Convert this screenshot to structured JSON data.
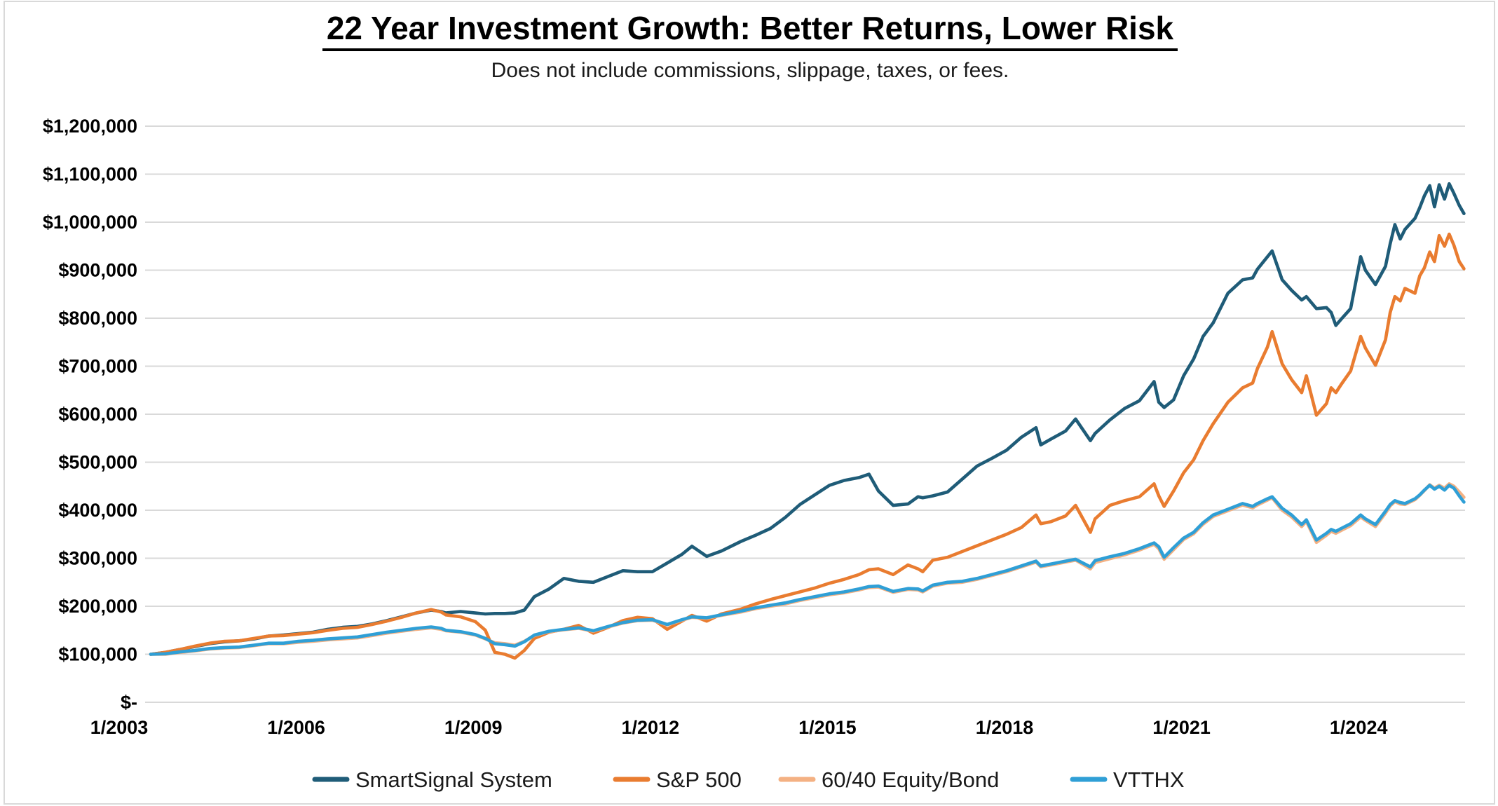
{
  "title": "22 Year Investment Growth: Better Returns, Lower Risk",
  "subtitle": "Does not include commissions, slippage, taxes, or fees.",
  "y_axis": {
    "ticks": [
      {
        "label": "$-",
        "value_thousands": 0
      },
      {
        "label": "$100,000",
        "value_thousands": 100
      },
      {
        "label": "$200,000",
        "value_thousands": 200
      },
      {
        "label": "$300,000",
        "value_thousands": 300
      },
      {
        "label": "$400,000",
        "value_thousands": 400
      },
      {
        "label": "$500,000",
        "value_thousands": 500
      },
      {
        "label": "$600,000",
        "value_thousands": 600
      },
      {
        "label": "$700,000",
        "value_thousands": 700
      },
      {
        "label": "$800,000",
        "value_thousands": 800
      },
      {
        "label": "$900,000",
        "value_thousands": 900
      },
      {
        "label": "$1,000,000",
        "value_thousands": 1000
      },
      {
        "label": "$1,100,000",
        "value_thousands": 1100
      },
      {
        "label": "$1,200,000",
        "value_thousands": 1200
      }
    ]
  },
  "x_axis": {
    "ticks": [
      {
        "label": "1/2003",
        "year": 2003
      },
      {
        "label": "1/2006",
        "year": 2006
      },
      {
        "label": "1/2009",
        "year": 2009
      },
      {
        "label": "1/2012",
        "year": 2012
      },
      {
        "label": "1/2015",
        "year": 2015
      },
      {
        "label": "1/2018",
        "year": 2018
      },
      {
        "label": "1/2021",
        "year": 2021
      },
      {
        "label": "1/2024",
        "year": 2024
      }
    ]
  },
  "colors": {
    "grid": "#d9d9d9",
    "smartsignal": "#1f5c78",
    "sp500": "#e97c30",
    "sixty_forty": "#f4b183",
    "vtthx": "#2f9fd6"
  },
  "chart_data": {
    "type": "line",
    "title": "22 Year Investment Growth: Better Returns, Lower Risk",
    "subtitle": "Does not include commissions, slippage, taxes, or fees.",
    "xlabel": "",
    "ylabel": "",
    "ylim_usd": [
      0,
      1200000
    ],
    "xlim_years": [
      2003,
      2025.25
    ],
    "grid": true,
    "legend_position": "bottom",
    "x_years": [
      2003,
      2003.25,
      2003.5,
      2003.75,
      2004,
      2004.25,
      2004.5,
      2004.75,
      2005,
      2005.25,
      2005.5,
      2005.75,
      2006,
      2006.25,
      2006.5,
      2006.75,
      2007,
      2007.25,
      2007.5,
      2007.75,
      2007.92,
      2008,
      2008.25,
      2008.5,
      2008.67,
      2008.83,
      2009,
      2009.17,
      2009.33,
      2009.5,
      2009.75,
      2010,
      2010.25,
      2010.5,
      2010.75,
      2011,
      2011.25,
      2011.5,
      2011.75,
      2012,
      2012.17,
      2012.42,
      2012.67,
      2013,
      2013.25,
      2013.5,
      2013.75,
      2014,
      2014.25,
      2014.5,
      2014.75,
      2015,
      2015.17,
      2015.33,
      2015.58,
      2015.83,
      2016,
      2016.08,
      2016.25,
      2016.5,
      2016.75,
      2017,
      2017.25,
      2017.5,
      2017.75,
      2018,
      2018.08,
      2018.25,
      2018.5,
      2018.67,
      2018.92,
      2019,
      2019.25,
      2019.5,
      2019.75,
      2020,
      2020.08,
      2020.17,
      2020.33,
      2020.5,
      2020.67,
      2020.83,
      2021,
      2021.25,
      2021.5,
      2021.67,
      2021.75,
      2021.92,
      2022,
      2022.17,
      2022.33,
      2022.5,
      2022.58,
      2022.75,
      2022.92,
      2023,
      2023.08,
      2023.17,
      2023.33,
      2023.5,
      2023.58,
      2023.75,
      2023.92,
      2024,
      2024.08,
      2024.17,
      2024.25,
      2024.42,
      2024.5,
      2024.58,
      2024.67,
      2024.75,
      2024.83,
      2024.92,
      2025,
      2025.08,
      2025.17,
      2025.25
    ],
    "series": [
      {
        "name": "SmartSignal System",
        "color": "#1f5c78",
        "values_usd_thousands": [
          100,
          104,
          110,
          116,
          122,
          126,
          128,
          132,
          138,
          140,
          143,
          146,
          152,
          156,
          158,
          163,
          170,
          178,
          186,
          192,
          189,
          186,
          189,
          186,
          184,
          185,
          185,
          186,
          192,
          220,
          236,
          258,
          252,
          250,
          262,
          274,
          272,
          272,
          290,
          308,
          325,
          304,
          315,
          335,
          348,
          362,
          385,
          412,
          432,
          452,
          462,
          468,
          475,
          440,
          410,
          413,
          428,
          426,
          430,
          438,
          465,
          492,
          508,
          525,
          552,
          572,
          536,
          548,
          565,
          590,
          545,
          560,
          588,
          612,
          628,
          668,
          625,
          614,
          630,
          680,
          715,
          762,
          790,
          852,
          880,
          884,
          902,
          928,
          940,
          880,
          858,
          838,
          845,
          820,
          822,
          812,
          785,
          798,
          820,
          928,
          900,
          870,
          908,
          955,
          995,
          965,
          985,
          1008,
          1030,
          1055,
          1076,
          1032,
          1078,
          1048,
          1080,
          1060,
          1035,
          1018
        ]
      },
      {
        "name": "S&P 500",
        "color": "#e97c30",
        "values_usd_thousands": [
          100,
          104,
          110,
          117,
          123,
          127,
          128,
          133,
          138,
          139,
          142,
          145,
          150,
          154,
          156,
          162,
          169,
          177,
          186,
          193,
          188,
          182,
          178,
          168,
          150,
          104,
          100,
          92,
          108,
          133,
          146,
          152,
          160,
          144,
          156,
          170,
          177,
          174,
          152,
          169,
          181,
          169,
          184,
          194,
          205,
          214,
          222,
          230,
          238,
          248,
          256,
          266,
          276,
          278,
          266,
          286,
          278,
          272,
          296,
          302,
          314,
          326,
          338,
          350,
          364,
          390,
          372,
          376,
          388,
          410,
          354,
          382,
          410,
          420,
          428,
          455,
          430,
          408,
          440,
          478,
          505,
          545,
          580,
          625,
          655,
          665,
          695,
          740,
          772,
          705,
          672,
          645,
          680,
          598,
          622,
          655,
          645,
          662,
          690,
          762,
          738,
          702,
          755,
          812,
          845,
          836,
          862,
          852,
          888,
          905,
          938,
          918,
          972,
          950,
          975,
          952,
          918,
          903
        ]
      },
      {
        "name": "60/40 Equity/Bond",
        "color": "#f4b183",
        "values_usd_thousands": [
          100,
          100,
          104,
          107,
          111,
          113,
          114,
          118,
          122,
          122,
          125,
          127,
          130,
          132,
          134,
          139,
          144,
          148,
          152,
          155,
          152,
          149,
          146,
          140,
          132,
          124,
          122,
          119,
          127,
          139,
          147,
          151,
          154,
          148,
          157,
          165,
          170,
          171,
          161,
          171,
          177,
          175,
          181,
          188,
          195,
          200,
          205,
          212,
          218,
          224,
          228,
          234,
          239,
          240,
          229,
          235,
          234,
          230,
          242,
          248,
          250,
          256,
          264,
          272,
          282,
          292,
          282,
          286,
          292,
          296,
          278,
          291,
          299,
          307,
          317,
          329,
          320,
          298,
          318,
          339,
          351,
          371,
          387,
          399,
          411,
          405,
          411,
          421,
          426,
          400,
          386,
          366,
          377,
          333,
          348,
          356,
          352,
          358,
          368,
          386,
          379,
          366,
          394,
          409,
          418,
          413,
          412,
          422,
          431,
          441,
          453,
          446,
          452,
          446,
          455,
          450,
          438,
          427
        ]
      },
      {
        "name": "VTTHX",
        "color": "#2f9fd6",
        "values_usd_thousands": [
          100,
          101,
          105,
          108,
          112,
          114,
          115,
          119,
          123,
          123,
          127,
          129,
          132,
          134,
          136,
          141,
          146,
          150,
          154,
          157,
          154,
          150,
          147,
          141,
          133,
          122,
          120,
          117,
          126,
          140,
          148,
          152,
          155,
          149,
          158,
          166,
          171,
          172,
          162,
          172,
          178,
          176,
          182,
          190,
          197,
          202,
          207,
          214,
          220,
          226,
          230,
          236,
          241,
          242,
          231,
          237,
          236,
          232,
          244,
          250,
          252,
          258,
          266,
          274,
          284,
          294,
          284,
          288,
          294,
          298,
          282,
          295,
          303,
          310,
          320,
          332,
          324,
          302,
          322,
          342,
          354,
          374,
          390,
          402,
          414,
          408,
          414,
          424,
          428,
          404,
          390,
          370,
          380,
          338,
          352,
          360,
          356,
          362,
          372,
          390,
          382,
          370,
          398,
          412,
          420,
          416,
          414,
          424,
          432,
          442,
          452,
          444,
          450,
          442,
          452,
          446,
          430,
          417
        ]
      }
    ]
  }
}
